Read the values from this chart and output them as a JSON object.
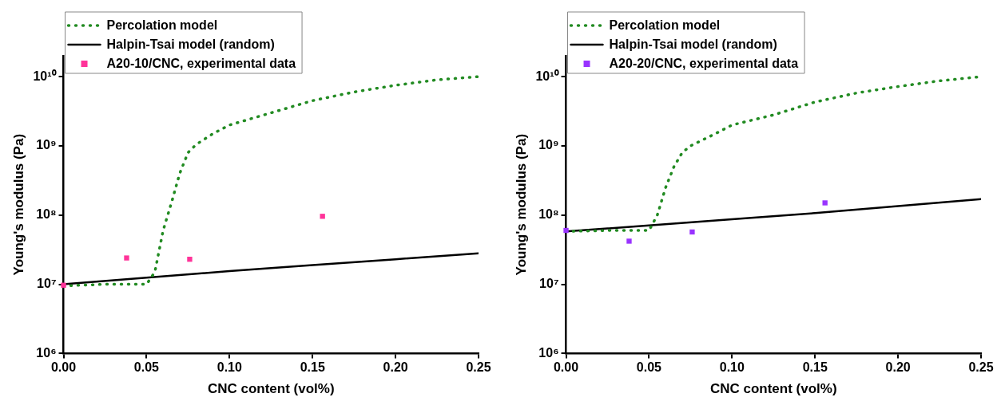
{
  "chart_data": [
    {
      "type": "line",
      "xlabel": "CNC content (vol%)",
      "ylabel": "Young's modulus (Pa)",
      "log": "y",
      "legend": "top left",
      "grid": false,
      "xlim": [
        0,
        0.25
      ],
      "xticks": [
        {
          "value": 0,
          "label": "0.00"
        },
        {
          "value": 0.05,
          "label": "0.05"
        },
        {
          "value": 0.1,
          "label": "0.10"
        },
        {
          "value": 0.15,
          "label": "0.15"
        },
        {
          "value": 0.2,
          "label": "0.20"
        },
        {
          "value": 0.25,
          "label": "0.25"
        }
      ],
      "ylim": [
        1000000,
        20000000000
      ],
      "yticks": [
        {
          "value": 1000000,
          "label": "10⁶"
        },
        {
          "value": 10000000,
          "label": "10⁷"
        },
        {
          "value": 100000000,
          "label": "10⁸"
        },
        {
          "value": 1000000000,
          "label": "10⁹"
        },
        {
          "value": 10000000000,
          "label": "10¹⁰"
        }
      ],
      "series": [
        {
          "name": "Percolation model",
          "type": "line",
          "line_style": "dotted",
          "marker": "none",
          "color": "#228b22",
          "x": [
            0,
            0.025,
            0.05,
            0.055,
            0.06,
            0.065,
            0.07,
            0.075,
            0.08,
            0.09,
            0.1,
            0.125,
            0.15,
            0.175,
            0.2,
            0.225,
            0.25
          ],
          "values": [
            9500000,
            10000000,
            10000000,
            15000000,
            60000000,
            150000000,
            400000000,
            800000000,
            1050000000,
            1500000000,
            2000000000,
            3000000000,
            4500000000,
            6000000000,
            7500000000,
            9000000000,
            10000000000
          ]
        },
        {
          "name": "Halpin-Tsai model (random)",
          "type": "line",
          "line_style": "solid",
          "marker": "none",
          "color": "#000000",
          "x": [
            0,
            0.05,
            0.1,
            0.15,
            0.2,
            0.25
          ],
          "values": [
            10000000,
            12500000,
            15500000,
            19000000,
            23000000,
            28000000
          ]
        },
        {
          "name": "A20-10/CNC, experimental data",
          "type": "scatter",
          "marker": "square",
          "color": "#ff3399",
          "x": [
            0,
            0.038,
            0.076,
            0.156
          ],
          "values": [
            9700000,
            24000000,
            23000000,
            96000000
          ]
        }
      ]
    },
    {
      "type": "line",
      "xlabel": "CNC content (vol%)",
      "ylabel": "Young's modulus (Pa)",
      "log": "y",
      "legend": "top left",
      "grid": false,
      "xlim": [
        0,
        0.25
      ],
      "xticks": [
        {
          "value": 0,
          "label": "0.00"
        },
        {
          "value": 0.05,
          "label": "0.05"
        },
        {
          "value": 0.1,
          "label": "0.10"
        },
        {
          "value": 0.15,
          "label": "0.15"
        },
        {
          "value": 0.2,
          "label": "0.20"
        },
        {
          "value": 0.25,
          "label": "0.25"
        }
      ],
      "ylim": [
        1000000,
        20000000000
      ],
      "yticks": [
        {
          "value": 1000000,
          "label": "10⁶"
        },
        {
          "value": 10000000,
          "label": "10⁷"
        },
        {
          "value": 100000000,
          "label": "10⁸"
        },
        {
          "value": 1000000000,
          "label": "10⁹"
        },
        {
          "value": 10000000000,
          "label": "10¹⁰"
        }
      ],
      "series": [
        {
          "name": "Percolation model",
          "type": "line",
          "line_style": "dotted",
          "marker": "none",
          "color": "#228b22",
          "x": [
            0,
            0.025,
            0.05,
            0.055,
            0.06,
            0.065,
            0.07,
            0.075,
            0.09,
            0.1,
            0.125,
            0.15,
            0.175,
            0.2,
            0.225,
            0.25
          ],
          "values": [
            58000000,
            60000000,
            60000000,
            100000000,
            250000000,
            500000000,
            800000000,
            1000000000,
            1500000000,
            2000000000,
            2800000000,
            4300000000,
            5800000000,
            7200000000,
            8700000000,
            10000000000
          ]
        },
        {
          "name": "Halpin-Tsai model (random)",
          "type": "line",
          "line_style": "solid",
          "marker": "none",
          "color": "#000000",
          "x": [
            0,
            0.05,
            0.1,
            0.15,
            0.2,
            0.25
          ],
          "values": [
            58000000,
            71000000,
            87000000,
            107000000,
            135000000,
            170000000
          ]
        },
        {
          "name": "A20-20/CNC, experimental data",
          "type": "scatter",
          "marker": "square",
          "color": "#9933ff",
          "x": [
            0,
            0.038,
            0.076,
            0.156
          ],
          "values": [
            60000000,
            42000000,
            57000000,
            150000000
          ]
        }
      ]
    }
  ]
}
